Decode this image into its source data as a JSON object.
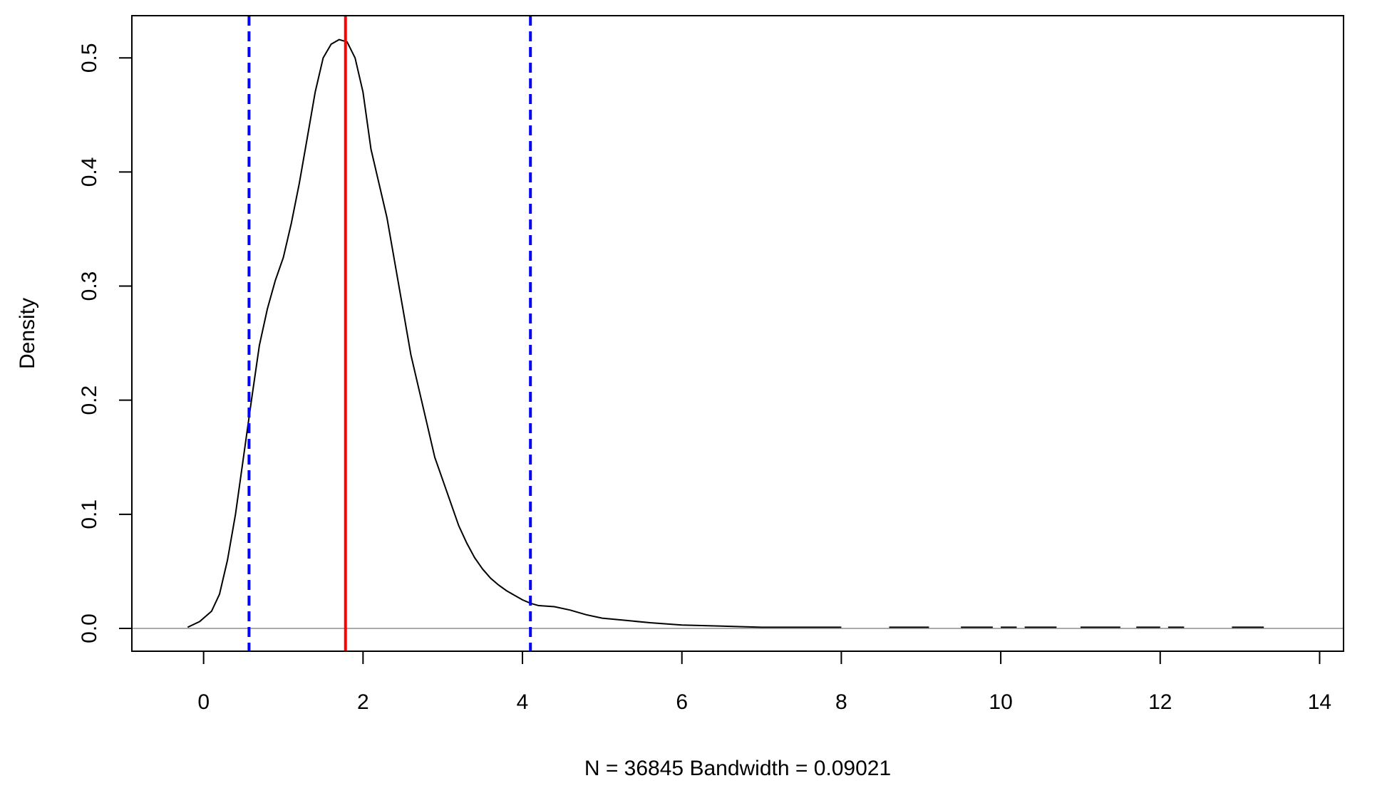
{
  "chart_data": {
    "type": "line",
    "title": "",
    "xlabel": "N = 36845   Bandwidth = 0.09021",
    "ylabel": "Density",
    "xlim": [
      -0.9,
      14.3
    ],
    "ylim": [
      -0.02,
      0.537
    ],
    "x_ticks": [
      0,
      2,
      4,
      6,
      8,
      10,
      12,
      14
    ],
    "x_tick_labels": [
      "0",
      "2",
      "4",
      "6",
      "8",
      "10",
      "12",
      "14"
    ],
    "y_ticks": [
      0.0,
      0.1,
      0.2,
      0.3,
      0.4,
      0.5
    ],
    "y_tick_labels": [
      "0.0",
      "0.1",
      "0.2",
      "0.3",
      "0.4",
      "0.5"
    ],
    "grid": false,
    "legend": "none",
    "series": [
      {
        "color": "#000000",
        "x": [
          -0.2,
          -0.05,
          0.1,
          0.2,
          0.3,
          0.4,
          0.5,
          0.6,
          0.7,
          0.8,
          0.9,
          1.0,
          1.1,
          1.2,
          1.3,
          1.4,
          1.5,
          1.6,
          1.7,
          1.8,
          1.9,
          2.0,
          2.1,
          2.2,
          2.3,
          2.4,
          2.5,
          2.6,
          2.7,
          2.8,
          2.9,
          3.0,
          3.1,
          3.2,
          3.3,
          3.4,
          3.5,
          3.6,
          3.7,
          3.8,
          3.9,
          4.0,
          4.1,
          4.2,
          4.4,
          4.6,
          4.8,
          5.0,
          5.3,
          5.6,
          6.0,
          6.5,
          7.0,
          8.0
        ],
        "y": [
          0.001,
          0.006,
          0.015,
          0.03,
          0.06,
          0.1,
          0.15,
          0.2,
          0.248,
          0.28,
          0.305,
          0.325,
          0.355,
          0.39,
          0.43,
          0.47,
          0.5,
          0.512,
          0.516,
          0.514,
          0.5,
          0.47,
          0.42,
          0.39,
          0.36,
          0.32,
          0.28,
          0.24,
          0.21,
          0.18,
          0.15,
          0.13,
          0.11,
          0.09,
          0.075,
          0.062,
          0.052,
          0.044,
          0.038,
          0.033,
          0.029,
          0.025,
          0.022,
          0.02,
          0.019,
          0.016,
          0.012,
          0.009,
          0.007,
          0.005,
          0.003,
          0.002,
          0.001,
          0.001
        ]
      }
    ],
    "tail_segments": [
      [
        8.6,
        9.1
      ],
      [
        9.5,
        9.9
      ],
      [
        10.0,
        10.2
      ],
      [
        10.3,
        10.7
      ],
      [
        11.0,
        11.5
      ],
      [
        11.7,
        12.0
      ],
      [
        12.1,
        12.3
      ],
      [
        12.9,
        13.3
      ]
    ],
    "baseline": {
      "y": 0,
      "color": "#aaaaaa"
    },
    "vlines": [
      {
        "x": 0.57,
        "color": "#0000ff",
        "style": "dashed"
      },
      {
        "x": 1.78,
        "color": "#ff0000",
        "style": "solid"
      },
      {
        "x": 4.1,
        "color": "#0000ff",
        "style": "dashed"
      }
    ]
  }
}
